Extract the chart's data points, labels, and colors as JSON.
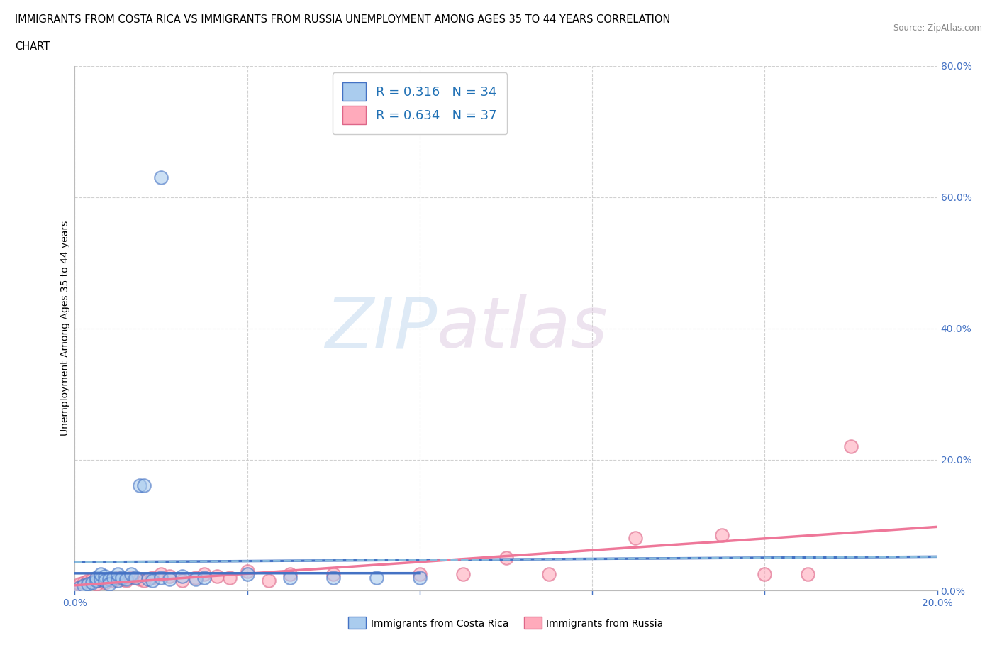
{
  "title_line1": "IMMIGRANTS FROM COSTA RICA VS IMMIGRANTS FROM RUSSIA UNEMPLOYMENT AMONG AGES 35 TO 44 YEARS CORRELATION",
  "title_line2": "CHART",
  "source": "Source: ZipAtlas.com",
  "ylabel": "Unemployment Among Ages 35 to 44 years",
  "legend_bottom": [
    "Immigrants from Costa Rica",
    "Immigrants from Russia"
  ],
  "costa_rica_R": 0.316,
  "costa_rica_N": 34,
  "russia_R": 0.634,
  "russia_N": 37,
  "xlim": [
    0.0,
    0.2
  ],
  "ylim": [
    0.0,
    0.8
  ],
  "xticks": [
    0.0,
    0.04,
    0.08,
    0.12,
    0.16,
    0.2
  ],
  "yticks": [
    0.0,
    0.2,
    0.4,
    0.6,
    0.8
  ],
  "color_blue_fill": "#aaccee",
  "color_blue_edge": "#4472c4",
  "color_pink_fill": "#ffaabb",
  "color_pink_edge": "#dd6688",
  "line_blue_solid": "#4472c4",
  "line_blue_dashed": "#88bbdd",
  "line_pink_solid": "#ee7799",
  "background_color": "#ffffff",
  "grid_color": "#cccccc",
  "costa_rica_x": [
    0.001,
    0.002,
    0.003,
    0.004,
    0.005,
    0.005,
    0.006,
    0.006,
    0.007,
    0.007,
    0.008,
    0.008,
    0.009,
    0.01,
    0.01,
    0.011,
    0.012,
    0.013,
    0.014,
    0.015,
    0.016,
    0.017,
    0.018,
    0.02,
    0.022,
    0.025,
    0.028,
    0.03,
    0.04,
    0.05,
    0.06,
    0.07,
    0.02,
    0.08
  ],
  "costa_rica_y": [
    0.005,
    0.008,
    0.01,
    0.012,
    0.015,
    0.02,
    0.018,
    0.025,
    0.022,
    0.015,
    0.018,
    0.01,
    0.02,
    0.015,
    0.025,
    0.02,
    0.018,
    0.025,
    0.02,
    0.16,
    0.16,
    0.018,
    0.015,
    0.02,
    0.018,
    0.022,
    0.018,
    0.02,
    0.025,
    0.02,
    0.02,
    0.02,
    0.63,
    0.02
  ],
  "russia_x": [
    0.0,
    0.001,
    0.002,
    0.003,
    0.004,
    0.005,
    0.006,
    0.007,
    0.008,
    0.009,
    0.01,
    0.011,
    0.012,
    0.013,
    0.015,
    0.016,
    0.018,
    0.02,
    0.022,
    0.025,
    0.028,
    0.03,
    0.033,
    0.036,
    0.04,
    0.045,
    0.05,
    0.06,
    0.08,
    0.09,
    0.1,
    0.11,
    0.13,
    0.15,
    0.16,
    0.17,
    0.18
  ],
  "russia_y": [
    0.005,
    0.01,
    0.012,
    0.015,
    0.018,
    0.01,
    0.015,
    0.012,
    0.018,
    0.015,
    0.02,
    0.018,
    0.015,
    0.02,
    0.018,
    0.015,
    0.02,
    0.025,
    0.022,
    0.015,
    0.02,
    0.025,
    0.022,
    0.02,
    0.03,
    0.015,
    0.025,
    0.025,
    0.025,
    0.025,
    0.05,
    0.025,
    0.08,
    0.085,
    0.025,
    0.025,
    0.22
  ]
}
